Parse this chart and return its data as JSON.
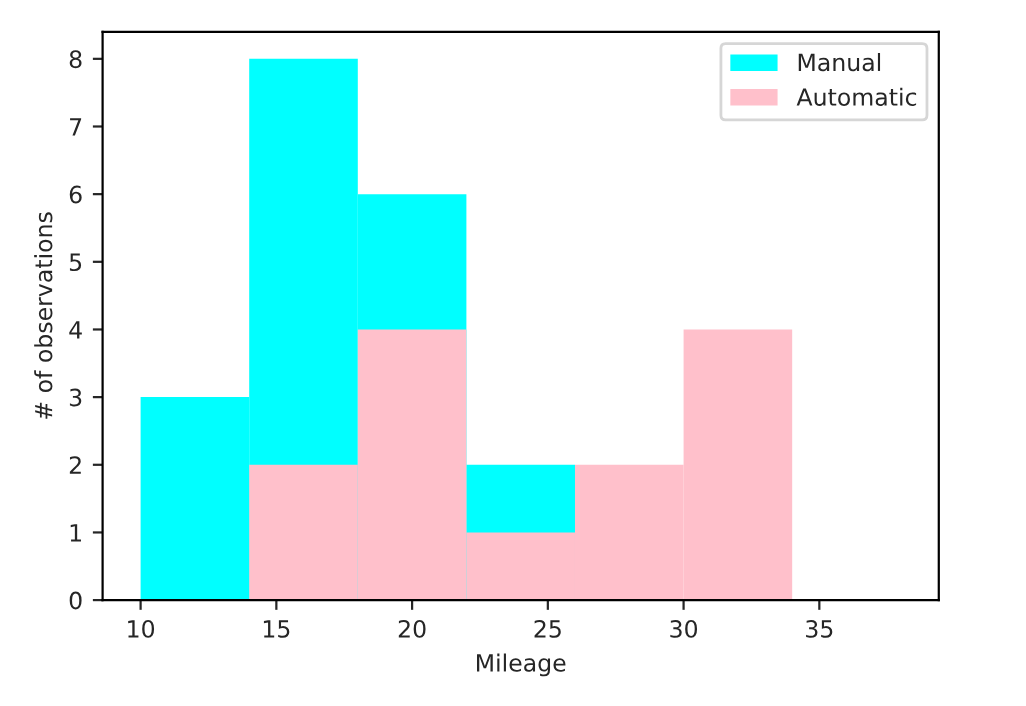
{
  "chart_data": {
    "type": "histogram",
    "xlabel": "Mileage",
    "ylabel": "# of observations",
    "bins": [
      10,
      14,
      18,
      22,
      26,
      30,
      34,
      38
    ],
    "series": [
      {
        "name": "Manual",
        "color": "#00ffff",
        "values": [
          3,
          8,
          6,
          2,
          null,
          null,
          0
        ]
      },
      {
        "name": "Automatic",
        "color": "#ffc0cb",
        "values": [
          0,
          2,
          4,
          1,
          2,
          4,
          0
        ]
      }
    ],
    "xlim": [
      8.6,
      39.4
    ],
    "xticks": [
      10,
      15,
      20,
      25,
      30,
      35
    ],
    "ylim": [
      0,
      8.4
    ],
    "yticks": [
      0,
      1,
      2,
      3,
      4,
      5,
      6,
      7,
      8
    ],
    "legend": "top right",
    "grid": false
  }
}
